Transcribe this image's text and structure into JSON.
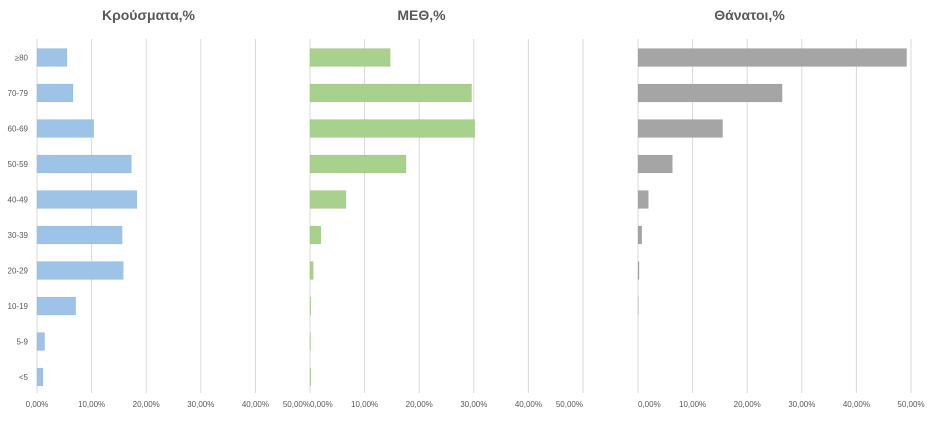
{
  "chart_data": {
    "type": "bar",
    "orientation": "horizontal",
    "categories": [
      "≥80",
      "70-79",
      "60-69",
      "50-59",
      "40-49",
      "30-39",
      "20-29",
      "10-19",
      "5-9",
      "<5"
    ],
    "grid": true,
    "legend": "none",
    "panels": [
      {
        "title": "Κρούσματα,%",
        "color": "#9dc3e6",
        "xlim": [
          0,
          0.5
        ],
        "ticks": [
          "0,00%",
          "10,00%",
          "20,00%",
          "30,00%",
          "40,00%",
          "50,00%"
        ],
        "values": [
          0.055,
          0.066,
          0.104,
          0.173,
          0.183,
          0.156,
          0.158,
          0.071,
          0.014,
          0.011
        ]
      },
      {
        "title": "ΜΕΘ,%",
        "color": "#a9d18e",
        "xlim": [
          0,
          0.5
        ],
        "ticks": [
          "0,00%",
          "10,00%",
          "20,00%",
          "30,00%",
          "40,00%",
          "50,00%"
        ],
        "values": [
          0.147,
          0.296,
          0.302,
          0.176,
          0.066,
          0.02,
          0.006,
          0.0015,
          0.001,
          0.0015
        ]
      },
      {
        "title": "Θάνατοι,%",
        "color": "#a5a5a5",
        "xlim": [
          0,
          0.5
        ],
        "ticks": [
          "0,00%",
          "10,00%",
          "20,00%",
          "30,00%",
          "40,00%",
          "50,00%"
        ],
        "values": [
          0.492,
          0.264,
          0.155,
          0.063,
          0.019,
          0.007,
          0.002,
          0.0005,
          0,
          0
        ]
      }
    ]
  }
}
